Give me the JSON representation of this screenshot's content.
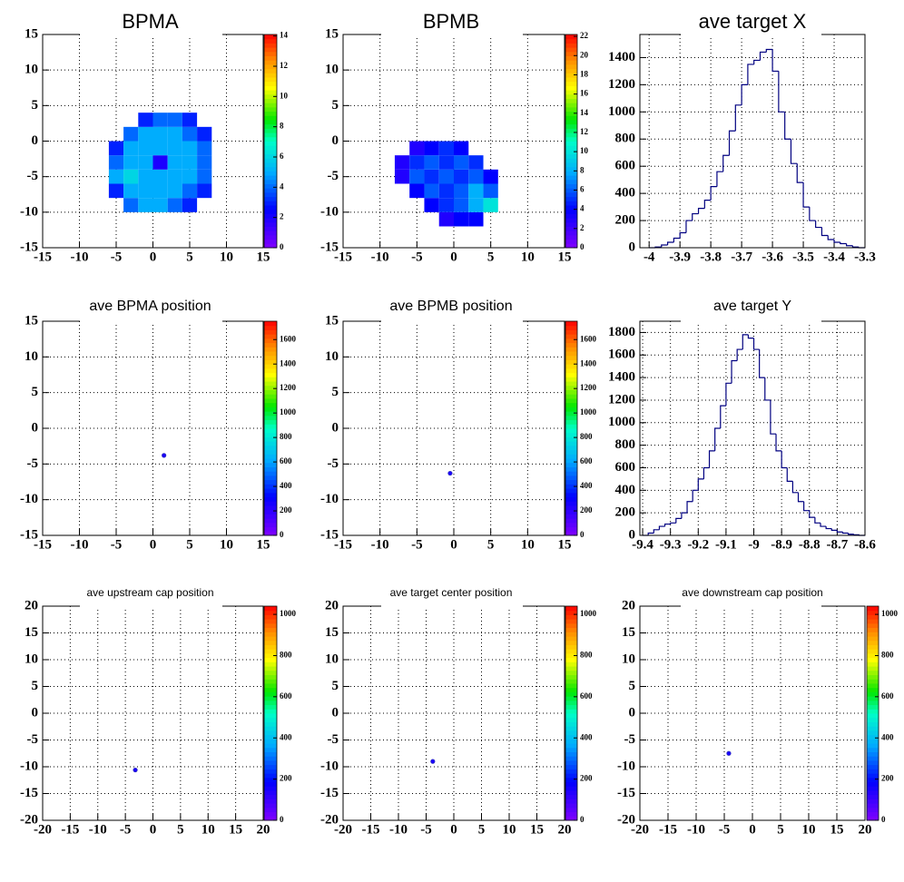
{
  "chart_data": [
    {
      "type": "heatmap",
      "title": "BPMA",
      "xlim": [
        -15,
        15
      ],
      "ylim": [
        -15,
        15
      ],
      "xticks": [
        -15,
        -10,
        -5,
        0,
        5,
        10,
        15
      ],
      "yticks": [
        -15,
        -10,
        -5,
        0,
        5,
        10,
        15
      ],
      "zlim": [
        0,
        14.1
      ],
      "zticks": [
        0,
        2,
        4,
        6,
        8,
        10,
        12,
        14
      ],
      "grid": true,
      "xbins": [
        -6,
        -4,
        -2,
        0,
        2,
        4,
        6,
        8
      ],
      "ybins": [
        -10,
        -8,
        -6,
        -4,
        -2,
        0,
        2,
        4
      ],
      "z": [
        [
          null,
          4,
          5,
          5,
          4,
          3,
          null
        ],
        [
          3,
          5,
          5,
          5,
          5,
          4,
          3
        ],
        [
          5,
          6,
          5,
          5,
          5,
          5,
          4
        ],
        [
          4,
          5,
          5,
          2,
          5,
          5,
          4
        ],
        [
          3,
          5,
          5,
          5,
          5,
          5,
          4
        ],
        [
          null,
          4,
          5,
          5,
          5,
          4,
          3
        ],
        [
          null,
          null,
          3,
          4,
          4,
          3,
          null
        ]
      ]
    },
    {
      "type": "heatmap",
      "title": "BPMB",
      "xlim": [
        -15,
        15
      ],
      "ylim": [
        -15,
        15
      ],
      "xticks": [
        -15,
        -10,
        -5,
        0,
        5,
        10,
        15
      ],
      "yticks": [
        -15,
        -10,
        -5,
        0,
        5,
        10,
        15
      ],
      "zlim": [
        0,
        22.2
      ],
      "zticks": [
        0,
        2,
        4,
        6,
        8,
        10,
        12,
        14,
        16,
        18,
        20,
        22
      ],
      "grid": true,
      "xbins": [
        -8,
        -6,
        -4,
        -2,
        0,
        2,
        4,
        6,
        8
      ],
      "ybins": [
        -12,
        -10,
        -8,
        -6,
        -4,
        -2,
        0
      ],
      "z": [
        [
          null,
          null,
          null,
          3,
          4,
          4,
          null,
          null
        ],
        [
          null,
          null,
          4,
          5,
          6,
          8,
          10,
          null
        ],
        [
          null,
          4,
          6,
          5,
          6,
          8,
          6,
          null
        ],
        [
          3,
          6,
          5,
          6,
          5,
          6,
          4,
          null
        ],
        [
          3,
          5,
          6,
          5,
          6,
          5,
          null,
          null
        ],
        [
          null,
          3,
          4,
          5,
          4,
          null,
          null,
          null
        ]
      ]
    },
    {
      "type": "histogram",
      "title": "ave target X",
      "xlim": [
        -4.03,
        -3.3
      ],
      "ylim": [
        0,
        1570
      ],
      "xticks": [
        -4,
        -3.9,
        -3.8,
        -3.7,
        -3.6,
        -3.5,
        -3.4,
        -3.3
      ],
      "yticks": [
        0,
        200,
        400,
        600,
        800,
        1000,
        1200,
        1400
      ],
      "grid": true,
      "color": "#000080",
      "bins": [
        -4.0,
        -3.98,
        -3.96,
        -3.94,
        -3.92,
        -3.9,
        -3.88,
        -3.86,
        -3.84,
        -3.82,
        -3.8,
        -3.78,
        -3.76,
        -3.74,
        -3.72,
        -3.7,
        -3.68,
        -3.66,
        -3.64,
        -3.62,
        -3.6,
        -3.58,
        -3.56,
        -3.54,
        -3.52,
        -3.5,
        -3.48,
        -3.46,
        -3.44,
        -3.42,
        -3.4,
        -3.38,
        -3.36,
        -3.34,
        -3.32,
        -3.3
      ],
      "values": [
        0,
        5,
        20,
        40,
        70,
        110,
        200,
        250,
        290,
        350,
        450,
        560,
        680,
        860,
        1050,
        1200,
        1350,
        1380,
        1440,
        1460,
        1300,
        1000,
        800,
        620,
        480,
        300,
        200,
        150,
        90,
        60,
        40,
        30,
        15,
        5,
        0
      ]
    },
    {
      "type": "points",
      "title": "ave BPMA position",
      "xlim": [
        -15,
        15
      ],
      "ylim": [
        -15,
        15
      ],
      "xticks": [
        -15,
        -10,
        -5,
        0,
        5,
        10,
        15
      ],
      "yticks": [
        -15,
        -10,
        -5,
        0,
        5,
        10,
        15
      ],
      "zlim": [
        0,
        1750
      ],
      "zticks": [
        0,
        200,
        400,
        600,
        800,
        1000,
        1200,
        1400,
        1600
      ],
      "grid": true,
      "x": [
        1.5
      ],
      "y": [
        -3.8
      ],
      "z": [
        250
      ]
    },
    {
      "type": "points",
      "title": "ave BPMB position",
      "xlim": [
        -15,
        15
      ],
      "ylim": [
        -15,
        15
      ],
      "xticks": [
        -15,
        -10,
        -5,
        0,
        5,
        10,
        15
      ],
      "yticks": [
        -15,
        -10,
        -5,
        0,
        5,
        10,
        15
      ],
      "zlim": [
        0,
        1750
      ],
      "zticks": [
        0,
        200,
        400,
        600,
        800,
        1000,
        1200,
        1400,
        1600
      ],
      "grid": true,
      "x": [
        -0.5
      ],
      "y": [
        -6.3
      ],
      "z": [
        250
      ]
    },
    {
      "type": "histogram",
      "title": "ave target Y",
      "xlim": [
        -9.41,
        -8.6
      ],
      "ylim": [
        0,
        1900
      ],
      "xticks": [
        -9.4,
        -9.3,
        -9.2,
        -9.1,
        -9,
        -8.9,
        -8.8,
        -8.7,
        -8.6
      ],
      "yticks": [
        0,
        200,
        400,
        600,
        800,
        1000,
        1200,
        1400,
        1600,
        1800
      ],
      "grid": true,
      "color": "#000080",
      "bins": [
        -9.4,
        -9.38,
        -9.36,
        -9.34,
        -9.32,
        -9.3,
        -9.28,
        -9.26,
        -9.24,
        -9.22,
        -9.2,
        -9.18,
        -9.16,
        -9.14,
        -9.12,
        -9.1,
        -9.08,
        -9.06,
        -9.04,
        -9.02,
        -9.0,
        -8.98,
        -8.96,
        -8.94,
        -8.92,
        -8.9,
        -8.88,
        -8.86,
        -8.84,
        -8.82,
        -8.8,
        -8.78,
        -8.76,
        -8.74,
        -8.72,
        -8.7,
        -8.68,
        -8.66,
        -8.64,
        -8.62,
        -8.6
      ],
      "values": [
        0,
        20,
        50,
        80,
        100,
        110,
        150,
        200,
        300,
        400,
        500,
        600,
        750,
        950,
        1150,
        1350,
        1550,
        1650,
        1780,
        1750,
        1650,
        1400,
        1200,
        900,
        750,
        600,
        480,
        380,
        300,
        220,
        160,
        110,
        80,
        60,
        45,
        30,
        20,
        10,
        5,
        0
      ]
    },
    {
      "type": "points",
      "title": "ave upstream cap position",
      "xlim": [
        -20,
        20
      ],
      "ylim": [
        -20,
        20
      ],
      "xticks": [
        -20,
        -15,
        -10,
        -5,
        0,
        5,
        10,
        15,
        20
      ],
      "yticks": [
        -20,
        -15,
        -10,
        -5,
        0,
        5,
        10,
        15,
        20
      ],
      "zlim": [
        0,
        1040
      ],
      "zticks": [
        0,
        200,
        400,
        600,
        800,
        1000
      ],
      "grid": true,
      "x": [
        -3.2
      ],
      "y": [
        -10.6
      ],
      "z": [
        150
      ]
    },
    {
      "type": "points",
      "title": "ave target center  position",
      "xlim": [
        -20,
        20
      ],
      "ylim": [
        -20,
        20
      ],
      "xticks": [
        -20,
        -15,
        -10,
        -5,
        0,
        5,
        10,
        15,
        20
      ],
      "yticks": [
        -20,
        -15,
        -10,
        -5,
        0,
        5,
        10,
        15,
        20
      ],
      "zlim": [
        0,
        1040
      ],
      "zticks": [
        0,
        200,
        400,
        600,
        800,
        1000
      ],
      "grid": true,
      "x": [
        -3.8
      ],
      "y": [
        -9
      ],
      "z": [
        150
      ]
    },
    {
      "type": "points",
      "title": "ave downstream cap position",
      "xlim": [
        -20,
        20
      ],
      "ylim": [
        -20,
        20
      ],
      "xticks": [
        -20,
        -15,
        -10,
        -5,
        0,
        5,
        10,
        15,
        20
      ],
      "yticks": [
        -20,
        -15,
        -10,
        -5,
        0,
        5,
        10,
        15,
        20
      ],
      "zlim": [
        0,
        1040
      ],
      "zticks": [
        0,
        200,
        400,
        600,
        800,
        1000
      ],
      "grid": true,
      "x": [
        -4.2
      ],
      "y": [
        -7.5
      ],
      "z": [
        150
      ]
    }
  ]
}
